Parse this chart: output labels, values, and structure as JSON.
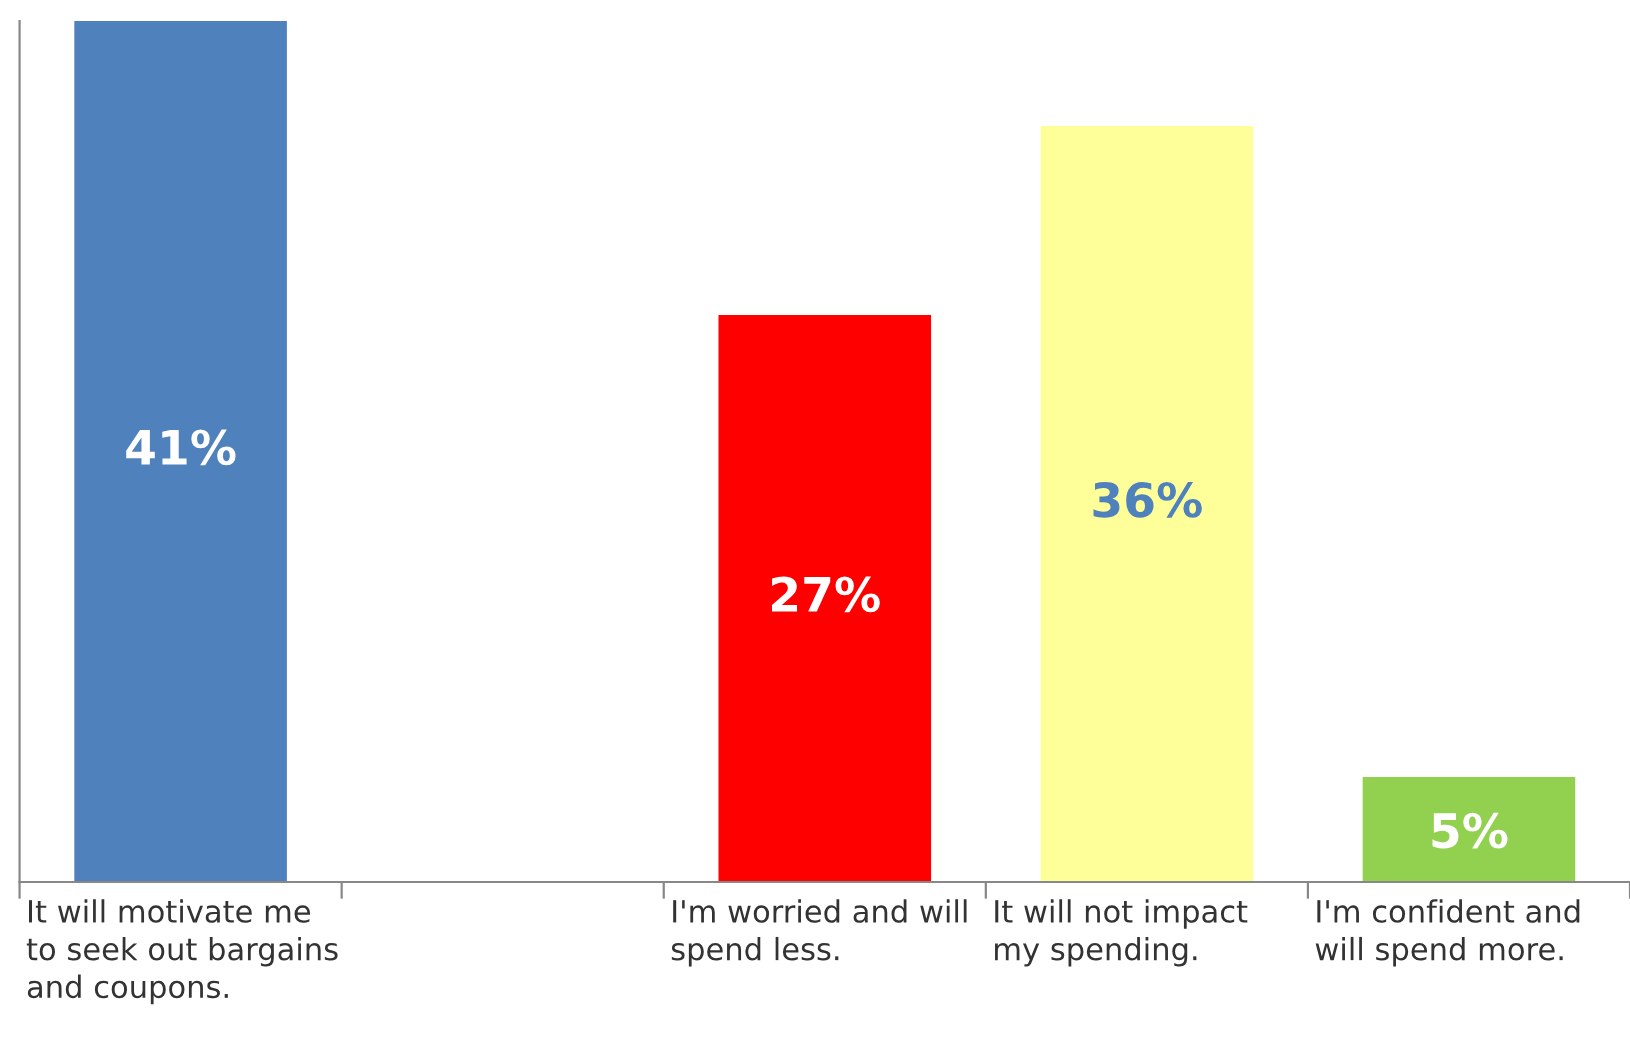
{
  "chart_data": {
    "type": "bar",
    "categories": [
      "It will motivate me\nto seek out bargains\nand coupons.",
      null,
      "I'm worried and will\nspend less.",
      "It will not impact\nmy spending.",
      "I'm confident and\nwill spend more."
    ],
    "values": [
      41,
      null,
      27,
      36,
      5
    ],
    "colors": [
      "#4f81bd",
      "#4f81bd",
      "#ff0000",
      "#ffff99",
      "#92d050"
    ],
    "value_labels": [
      "41%",
      null,
      "27%",
      "36%",
      "5%"
    ],
    "grid": false,
    "legend": false
  }
}
